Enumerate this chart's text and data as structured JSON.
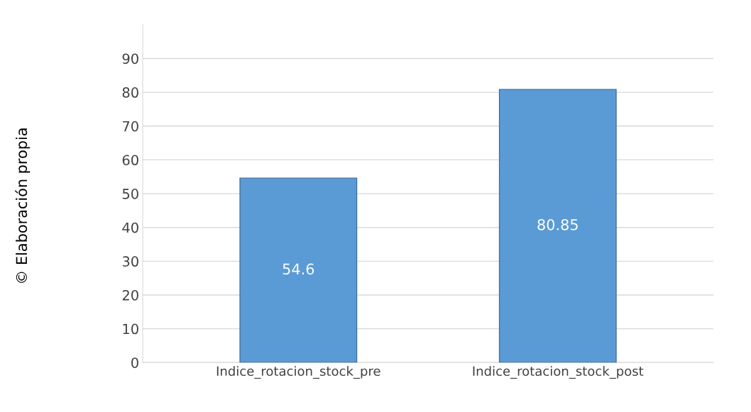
{
  "chart_data": {
    "type": "bar",
    "categories": [
      "Indice_rotacion_stock_pre",
      "Indice_rotacion_stock_post"
    ],
    "values": [
      54.6,
      80.85
    ],
    "color": "#5b9bd5",
    "ylim": [
      0,
      100
    ],
    "yticks": [
      0,
      10,
      20,
      30,
      40,
      50,
      60,
      70,
      80,
      90
    ],
    "grid": "y",
    "data_labels": true,
    "annotations": [
      "© Elaboración propia"
    ]
  }
}
